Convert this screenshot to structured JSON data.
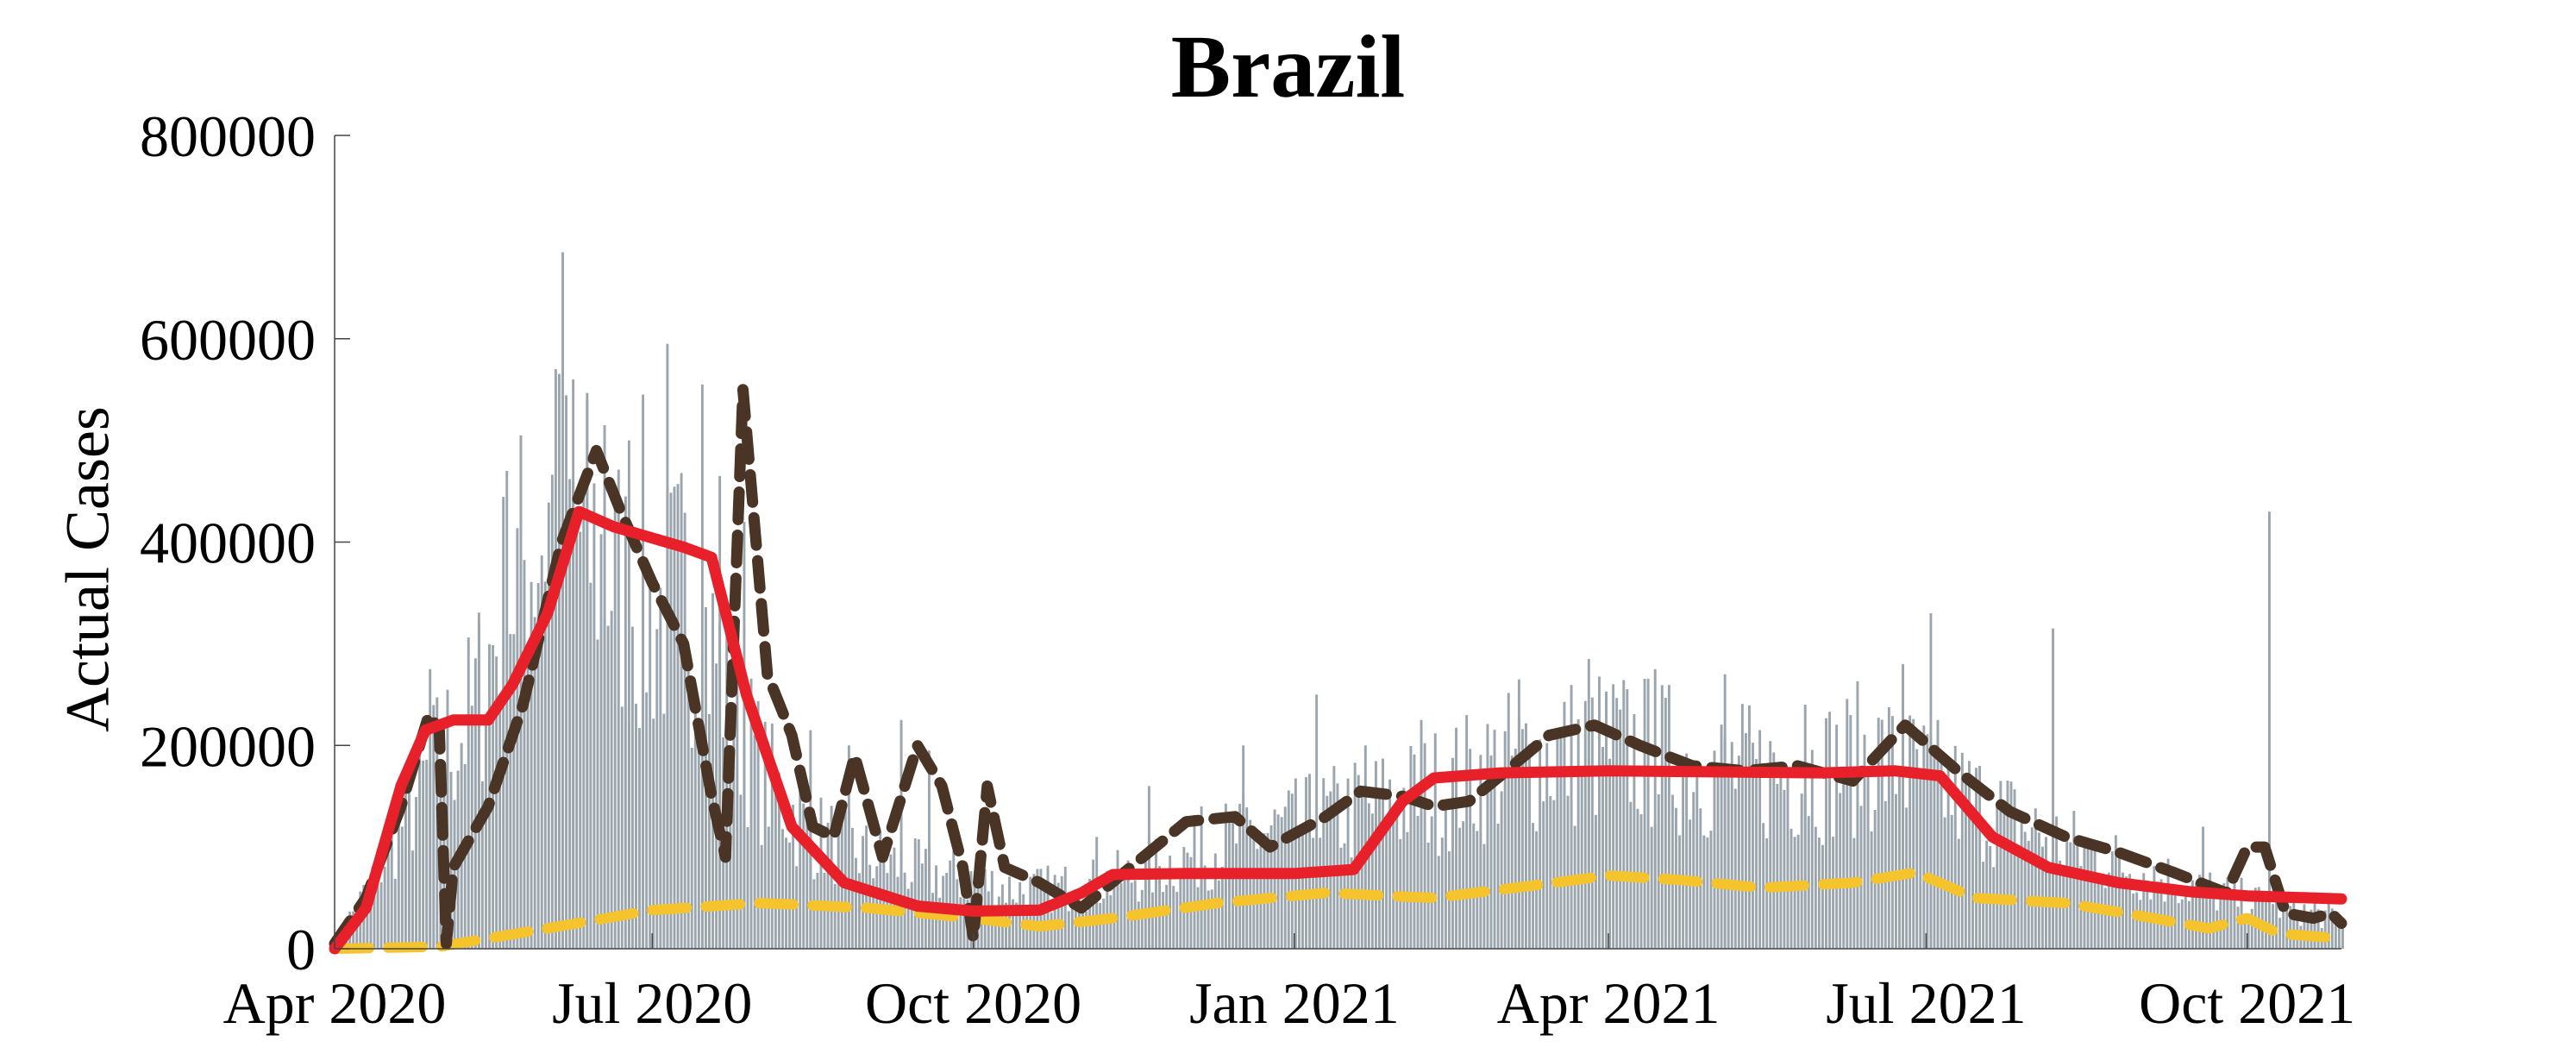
{
  "chart_data": {
    "type": "bar",
    "title": "Brazil",
    "xlabel": "",
    "ylabel": "Actual Cases",
    "ylim": [
      0,
      800000
    ],
    "xlim": [
      "2020-04-01",
      "2021-10-28"
    ],
    "y_ticks": [
      0,
      200000,
      400000,
      600000,
      800000
    ],
    "y_tick_labels": [
      "0",
      "200000",
      "400000",
      "600000",
      "800000"
    ],
    "x_ticks": [
      "2020-04-01",
      "2020-07-01",
      "2020-10-01",
      "2021-01-01",
      "2021-04-01",
      "2021-07-01",
      "2021-10-01"
    ],
    "x_tick_labels": [
      "Apr 2020",
      "Jul 2020",
      "Oct 2020",
      "Jan 2021",
      "Apr 2021",
      "Jul 2021",
      "Oct 2021"
    ],
    "grid": false,
    "legend": "none",
    "colors": {
      "bars": "#9aa5ae",
      "red_line": "#e8202a",
      "brown_dashed": "#4a3426",
      "yellow_dashed": "#f5c32c"
    },
    "bars": {
      "name": "",
      "daily_profile": [
        [
          "2020-04-01",
          10000
        ],
        [
          "2020-04-10",
          60000
        ],
        [
          "2020-04-20",
          130000
        ],
        [
          "2020-05-01",
          200000
        ],
        [
          "2020-05-10",
          240000
        ],
        [
          "2020-05-20",
          360000
        ],
        [
          "2020-06-01",
          450000
        ],
        [
          "2020-06-10",
          430000
        ],
        [
          "2020-06-20",
          380000
        ],
        [
          "2020-07-01",
          340000
        ],
        [
          "2020-07-10",
          370000
        ],
        [
          "2020-07-20",
          290000
        ],
        [
          "2020-08-01",
          180000
        ],
        [
          "2020-08-15",
          120000
        ],
        [
          "2020-09-01",
          95000
        ],
        [
          "2020-09-15",
          80000
        ],
        [
          "2020-10-01",
          70000
        ],
        [
          "2020-10-15",
          60000
        ],
        [
          "2020-11-01",
          65000
        ],
        [
          "2020-11-15",
          75000
        ],
        [
          "2020-12-01",
          95000
        ],
        [
          "2020-12-15",
          115000
        ],
        [
          "2021-01-01",
          125000
        ],
        [
          "2021-01-15",
          140000
        ],
        [
          "2021-02-01",
          155000
        ],
        [
          "2021-02-15",
          170000
        ],
        [
          "2021-03-01",
          190000
        ],
        [
          "2021-03-15",
          200000
        ],
        [
          "2021-04-01",
          210000
        ],
        [
          "2021-04-15",
          200000
        ],
        [
          "2021-05-01",
          185000
        ],
        [
          "2021-05-15",
          180000
        ],
        [
          "2021-06-01",
          185000
        ],
        [
          "2021-06-15",
          200000
        ],
        [
          "2021-07-01",
          175000
        ],
        [
          "2021-07-15",
          150000
        ],
        [
          "2021-08-01",
          120000
        ],
        [
          "2021-08-15",
          100000
        ],
        [
          "2021-09-01",
          80000
        ],
        [
          "2021-09-15",
          65000
        ],
        [
          "2021-10-01",
          50000
        ],
        [
          "2021-10-15",
          40000
        ],
        [
          "2021-10-28",
          30000
        ]
      ],
      "spikes": [
        [
          "2020-04-28",
          275000
        ],
        [
          "2020-05-12",
          320000
        ],
        [
          "2020-05-20",
          470000
        ],
        [
          "2020-05-24",
          505000
        ],
        [
          "2020-06-03",
          570000
        ],
        [
          "2020-06-05",
          685000
        ],
        [
          "2020-06-08",
          560000
        ],
        [
          "2020-06-12",
          540000
        ],
        [
          "2020-06-17",
          515000
        ],
        [
          "2020-06-24",
          500000
        ],
        [
          "2020-06-28",
          545000
        ],
        [
          "2020-07-05",
          595000
        ],
        [
          "2020-07-15",
          555000
        ],
        [
          "2020-07-20",
          465000
        ],
        [
          "2020-07-27",
          420000
        ],
        [
          "2020-08-15",
          215000
        ],
        [
          "2020-08-26",
          200000
        ],
        [
          "2020-09-10",
          225000
        ],
        [
          "2020-09-18",
          195000
        ],
        [
          "2020-11-05",
          110000
        ],
        [
          "2020-11-20",
          160000
        ],
        [
          "2020-12-05",
          140000
        ],
        [
          "2020-12-17",
          200000
        ],
        [
          "2021-01-07",
          250000
        ],
        [
          "2021-01-21",
          200000
        ],
        [
          "2021-02-06",
          225000
        ],
        [
          "2021-03-06",
          265000
        ],
        [
          "2021-03-26",
          285000
        ],
        [
          "2021-04-14",
          275000
        ],
        [
          "2021-05-04",
          270000
        ],
        [
          "2021-05-27",
          240000
        ],
        [
          "2021-06-24",
          280000
        ],
        [
          "2021-07-02",
          330000
        ],
        [
          "2021-08-06",
          315000
        ],
        [
          "2021-09-18",
          120000
        ],
        [
          "2021-10-07",
          430000
        ],
        [
          "2021-10-20",
          55000
        ]
      ]
    },
    "series": [
      {
        "name": "",
        "style": "solid",
        "color": "#e8202a",
        "points": [
          [
            "2020-04-01",
            0
          ],
          [
            "2020-04-10",
            40000
          ],
          [
            "2020-04-20",
            160000
          ],
          [
            "2020-04-27",
            215000
          ],
          [
            "2020-05-05",
            225000
          ],
          [
            "2020-05-15",
            225000
          ],
          [
            "2020-05-22",
            260000
          ],
          [
            "2020-06-01",
            330000
          ],
          [
            "2020-06-10",
            430000
          ],
          [
            "2020-06-20",
            415000
          ],
          [
            "2020-07-10",
            395000
          ],
          [
            "2020-07-18",
            385000
          ],
          [
            "2020-07-28",
            250000
          ],
          [
            "2020-08-10",
            120000
          ],
          [
            "2020-08-25",
            65000
          ],
          [
            "2020-09-15",
            42000
          ],
          [
            "2020-10-01",
            37000
          ],
          [
            "2020-10-20",
            38000
          ],
          [
            "2020-11-01",
            55000
          ],
          [
            "2020-11-10",
            73000
          ],
          [
            "2020-12-01",
            74000
          ],
          [
            "2021-01-01",
            74000
          ],
          [
            "2021-01-18",
            78000
          ],
          [
            "2021-02-01",
            145000
          ],
          [
            "2021-02-10",
            168000
          ],
          [
            "2021-03-01",
            173000
          ],
          [
            "2021-04-01",
            175000
          ],
          [
            "2021-05-01",
            174000
          ],
          [
            "2021-06-01",
            173000
          ],
          [
            "2021-06-22",
            175000
          ],
          [
            "2021-07-05",
            170000
          ],
          [
            "2021-07-20",
            110000
          ],
          [
            "2021-08-05",
            80000
          ],
          [
            "2021-08-25",
            65000
          ],
          [
            "2021-09-15",
            56000
          ],
          [
            "2021-10-01",
            52000
          ],
          [
            "2021-10-28",
            49000
          ]
        ]
      },
      {
        "name": "",
        "style": "dashed",
        "color": "#4a3426",
        "points": [
          [
            "2020-04-01",
            5000
          ],
          [
            "2020-04-10",
            50000
          ],
          [
            "2020-04-20",
            140000
          ],
          [
            "2020-04-28",
            230000
          ],
          [
            "2020-05-01",
            215000
          ],
          [
            "2020-05-03",
            5000
          ],
          [
            "2020-05-05",
            80000
          ],
          [
            "2020-05-15",
            140000
          ],
          [
            "2020-05-25",
            240000
          ],
          [
            "2020-06-05",
            400000
          ],
          [
            "2020-06-15",
            490000
          ],
          [
            "2020-06-22",
            430000
          ],
          [
            "2020-07-01",
            360000
          ],
          [
            "2020-07-10",
            300000
          ],
          [
            "2020-07-18",
            150000
          ],
          [
            "2020-07-22",
            90000
          ],
          [
            "2020-07-27",
            550000
          ],
          [
            "2020-08-03",
            270000
          ],
          [
            "2020-08-10",
            210000
          ],
          [
            "2020-08-16",
            120000
          ],
          [
            "2020-08-22",
            110000
          ],
          [
            "2020-08-28",
            190000
          ],
          [
            "2020-09-05",
            90000
          ],
          [
            "2020-09-15",
            200000
          ],
          [
            "2020-09-22",
            160000
          ],
          [
            "2020-09-28",
            80000
          ],
          [
            "2020-10-01",
            10000
          ],
          [
            "2020-10-05",
            160000
          ],
          [
            "2020-10-10",
            80000
          ],
          [
            "2020-10-20",
            65000
          ],
          [
            "2020-11-01",
            40000
          ],
          [
            "2020-11-15",
            80000
          ],
          [
            "2020-12-01",
            125000
          ],
          [
            "2020-12-15",
            130000
          ],
          [
            "2020-12-25",
            100000
          ],
          [
            "2021-01-10",
            130000
          ],
          [
            "2021-01-20",
            155000
          ],
          [
            "2021-02-01",
            150000
          ],
          [
            "2021-02-10",
            140000
          ],
          [
            "2021-02-20",
            145000
          ],
          [
            "2021-03-01",
            170000
          ],
          [
            "2021-03-15",
            210000
          ],
          [
            "2021-03-28",
            220000
          ],
          [
            "2021-04-10",
            200000
          ],
          [
            "2021-04-25",
            180000
          ],
          [
            "2021-05-10",
            175000
          ],
          [
            "2021-05-25",
            180000
          ],
          [
            "2021-06-10",
            165000
          ],
          [
            "2021-06-25",
            220000
          ],
          [
            "2021-07-10",
            175000
          ],
          [
            "2021-07-25",
            135000
          ],
          [
            "2021-08-10",
            110000
          ],
          [
            "2021-08-25",
            95000
          ],
          [
            "2021-09-10",
            75000
          ],
          [
            "2021-09-25",
            55000
          ],
          [
            "2021-10-01",
            100000
          ],
          [
            "2021-10-06",
            100000
          ],
          [
            "2021-10-12",
            35000
          ],
          [
            "2021-10-20",
            30000
          ],
          [
            "2021-10-25",
            35000
          ],
          [
            "2021-10-28",
            25000
          ]
        ]
      },
      {
        "name": "",
        "style": "dashed",
        "color": "#f5c32c",
        "points": [
          [
            "2020-04-01",
            0
          ],
          [
            "2020-05-01",
            2000
          ],
          [
            "2020-06-01",
            20000
          ],
          [
            "2020-07-01",
            38000
          ],
          [
            "2020-08-01",
            45000
          ],
          [
            "2020-09-01",
            40000
          ],
          [
            "2020-10-01",
            30000
          ],
          [
            "2020-10-20",
            22000
          ],
          [
            "2020-11-10",
            30000
          ],
          [
            "2020-12-10",
            45000
          ],
          [
            "2021-01-10",
            55000
          ],
          [
            "2021-02-10",
            50000
          ],
          [
            "2021-03-10",
            62000
          ],
          [
            "2021-04-01",
            72000
          ],
          [
            "2021-04-20",
            68000
          ],
          [
            "2021-05-15",
            60000
          ],
          [
            "2021-06-10",
            65000
          ],
          [
            "2021-06-28",
            75000
          ],
          [
            "2021-07-15",
            50000
          ],
          [
            "2021-08-10",
            45000
          ],
          [
            "2021-09-01",
            32000
          ],
          [
            "2021-09-20",
            20000
          ],
          [
            "2021-10-01",
            30000
          ],
          [
            "2021-10-10",
            15000
          ],
          [
            "2021-10-28",
            10000
          ]
        ]
      }
    ]
  }
}
